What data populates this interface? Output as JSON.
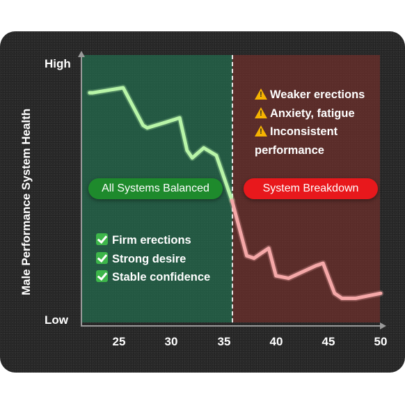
{
  "chart_data": {
    "type": "line",
    "title": "",
    "xlabel": "",
    "ylabel": "Male Performance System Health",
    "x_ticks": [
      25,
      30,
      35,
      40,
      45,
      50
    ],
    "y_ticks": [
      "Low",
      "High"
    ],
    "xlim": [
      22,
      50.5
    ],
    "ylim": [
      0,
      100
    ],
    "threshold_x": 36,
    "series": [
      {
        "color": "#b8f5a8",
        "x": [
          22.2,
          22.5,
          25.4,
          27.3,
          27.7,
          29.3,
          30.8,
          31.5,
          32.0,
          33.1,
          34.3,
          35.8
        ],
        "y": [
          88,
          88,
          90,
          75,
          74,
          76,
          78,
          65,
          62,
          66,
          63,
          45
        ]
      },
      {
        "color": "#f5a8a8",
        "x": [
          35.8,
          37.2,
          37.9,
          38.6,
          39.3,
          40.0,
          41.2,
          43.8,
          44.5,
          45.6,
          46.3,
          47.6,
          50.0
        ],
        "y": [
          45,
          23,
          22,
          24,
          26,
          15,
          14,
          19,
          20,
          8,
          6,
          6,
          8
        ]
      }
    ]
  },
  "zones": {
    "balanced_label": "All Systems Balanced",
    "breakdown_label": "System Breakdown",
    "colors": {
      "balanced": "#1e8a2c",
      "breakdown": "#e8181c"
    }
  },
  "warnings": [
    {
      "icon": "warning-icon",
      "text": "Weaker erections"
    },
    {
      "icon": "warning-icon",
      "text": "Anxiety, fatigue"
    },
    {
      "icon": "warning-icon",
      "text": "Inconsistent"
    },
    {
      "icon": "",
      "text": "performance"
    }
  ],
  "positives": [
    {
      "icon": "check-icon",
      "text": "Firm erections"
    },
    {
      "icon": "check-icon",
      "text": "Strong desire"
    },
    {
      "icon": "check-icon",
      "text": "Stable confidence"
    }
  ]
}
